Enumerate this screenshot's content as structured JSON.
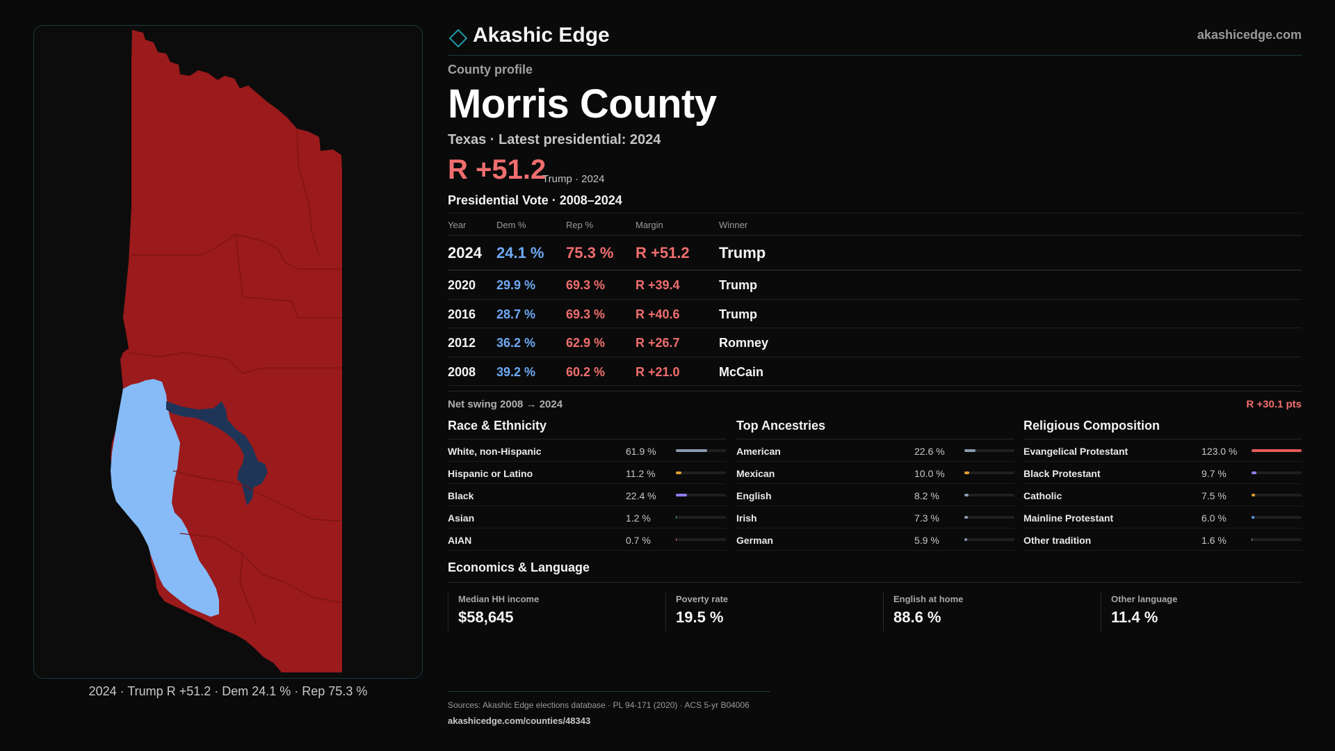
{
  "brand": {
    "name": "Akashic Edge",
    "url": "akashicedge.com",
    "logo_icon": "diamond-icon",
    "accent": "#1e9aa8"
  },
  "profile": {
    "kicker": "County profile",
    "county": "Morris County",
    "subline": "Texas · Latest presidential: 2024",
    "margin": "R +51.2",
    "margin_note": "Trump · 2024"
  },
  "map": {
    "caption": "2024 · Trump R +51.2 · Dem 24.1 % · Rep 75.3 %",
    "colors": {
      "rep": "#9b1a1c",
      "dem_light": "#86bbf8",
      "dem_dark": "#1e3558"
    }
  },
  "vote": {
    "title": "Presidential Vote · 2008–2024",
    "headers": {
      "year": "Year",
      "dem": "Dem %",
      "rep": "Rep %",
      "margin": "Margin",
      "winner": "Winner"
    },
    "rows": [
      {
        "year": "2024",
        "dem": "24.1 %",
        "rep": "75.3 %",
        "margin": "R +51.2",
        "winner": "Trump"
      },
      {
        "year": "2020",
        "dem": "29.9 %",
        "rep": "69.3 %",
        "margin": "R +39.4",
        "winner": "Trump"
      },
      {
        "year": "2016",
        "dem": "28.7 %",
        "rep": "69.3 %",
        "margin": "R +40.6",
        "winner": "Trump"
      },
      {
        "year": "2012",
        "dem": "36.2 %",
        "rep": "62.9 %",
        "margin": "R +26.7",
        "winner": "Romney"
      },
      {
        "year": "2008",
        "dem": "39.2 %",
        "rep": "60.2 %",
        "margin": "R +21.0",
        "winner": "McCain"
      }
    ],
    "swing_label": "Net swing 2008 → 2024",
    "swing_value": "R +30.1 pts"
  },
  "race": {
    "title": "Race & Ethnicity",
    "items": [
      {
        "label": "White, non-Hispanic",
        "value": "61.9 %",
        "pct": 61.9,
        "color": "#8a9ab0"
      },
      {
        "label": "Hispanic or Latino",
        "value": "11.2 %",
        "pct": 11.2,
        "color": "#e0a030"
      },
      {
        "label": "Black",
        "value": "22.4 %",
        "pct": 22.4,
        "color": "#8c7ef0"
      },
      {
        "label": "Asian",
        "value": "1.2 %",
        "pct": 1.2,
        "color": "#2fb88a"
      },
      {
        "label": "AIAN",
        "value": "0.7 %",
        "pct": 0.7,
        "color": "#d06a6a"
      }
    ]
  },
  "ancestry": {
    "title": "Top Ancestries",
    "items": [
      {
        "label": "American",
        "value": "22.6 %",
        "pct": 22.6,
        "color": "#8a9ab0"
      },
      {
        "label": "Mexican",
        "value": "10.0 %",
        "pct": 10.0,
        "color": "#e0a030"
      },
      {
        "label": "English",
        "value": "8.2 %",
        "pct": 8.2,
        "color": "#8a9ab0"
      },
      {
        "label": "Irish",
        "value": "7.3 %",
        "pct": 7.3,
        "color": "#8a9ab0"
      },
      {
        "label": "German",
        "value": "5.9 %",
        "pct": 5.9,
        "color": "#8a9ab0"
      }
    ]
  },
  "religion": {
    "title": "Religious Composition",
    "items": [
      {
        "label": "Evangelical Protestant",
        "value": "123.0 %",
        "pct": 100,
        "color": "#e85a5a"
      },
      {
        "label": "Black Protestant",
        "value": "9.7 %",
        "pct": 9.7,
        "color": "#8c7ef0"
      },
      {
        "label": "Catholic",
        "value": "7.5 %",
        "pct": 7.5,
        "color": "#e0a030"
      },
      {
        "label": "Mainline Protestant",
        "value": "6.0 %",
        "pct": 6.0,
        "color": "#5a9af0"
      },
      {
        "label": "Other tradition",
        "value": "1.6 %",
        "pct": 1.6,
        "color": "#8a9ab0"
      }
    ]
  },
  "economics": {
    "title": "Economics & Language",
    "cards": [
      {
        "label": "Median HH income",
        "value": "$58,645"
      },
      {
        "label": "Poverty rate",
        "value": "19.5 %"
      },
      {
        "label": "English at home",
        "value": "88.6 %"
      },
      {
        "label": "Other language",
        "value": "11.4 %"
      }
    ]
  },
  "sources": {
    "line": "Sources: Akashic Edge elections database · PL 94-171 (2020) · ACS 5-yr B04006",
    "url": "akashicedge.com/counties/48343"
  }
}
